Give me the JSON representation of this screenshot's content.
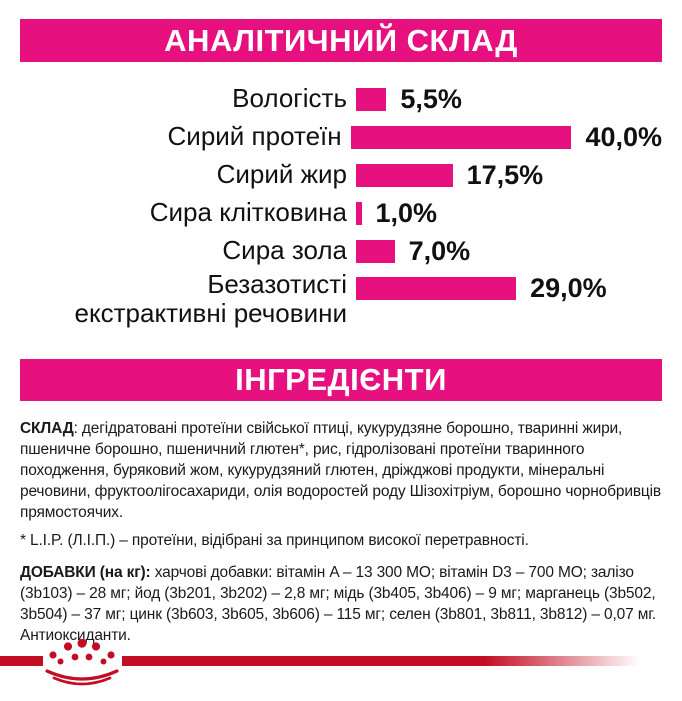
{
  "colors": {
    "accent_pink": "#E6117F",
    "brand_red": "#C30D23",
    "text": "#1a1a1a"
  },
  "section_analytical": {
    "title": "АНАЛІТИЧНИЙ СКЛАД"
  },
  "chart_data": {
    "type": "bar",
    "orientation": "horizontal",
    "categories": [
      "Вологість",
      "Сирий протеїн",
      "Сирий жир",
      "Сира клітковина",
      "Сира зола",
      "Безазотисті\nекстрактивні речовини"
    ],
    "values": [
      5.5,
      40.0,
      17.5,
      1.0,
      7.0,
      29.0
    ],
    "value_labels": [
      "5,5%",
      "40,0%",
      "17,5%",
      "1,0%",
      "7,0%",
      "29,0%"
    ],
    "title": "АНАЛІТИЧНИЙ СКЛАД",
    "xlabel": "",
    "ylabel": "",
    "xlim": [
      0,
      40
    ],
    "bar_color": "#E6117F",
    "grid": false,
    "legend": false
  },
  "section_ingredients": {
    "title": "ІНГРЕДІЄНТИ"
  },
  "composition": {
    "label": "СКЛАД",
    "text": ": дегідратовані протеїни свійської птиці, кукурудзяне борошно, тваринні жири, пшеничне борошно, пшеничний глютен*, рис, гідролізовані протеїни тваринного походження, буряковий жом, кукурудзяний глютен, дріжджові продукти, мінеральні речовини, фруктоолігосахариди, олія водоростей роду Шізохітріум, борошно чорнобривців прямостоячих."
  },
  "footnote": "* L.I.P. (Л.І.П.) – протеїни, відібрані за принципом високої перетравності.",
  "additives": {
    "label": "ДОБАВКИ (на кг):",
    "text": " харчові добавки: вітамін A – 13 300 МО; вітамін D3 – 700 МО; залізо (3b103) – 28 мг; йод (3b201, 3b202) – 2,8 мг; мідь (3b405, 3b406) – 9 мг; марганець (3b502, 3b504) – 37 мг; цинк (3b603, 3b605, 3b606) – 115 мг; селен (3b801, 3b811, 3b812) – 0,07 мг. Антиоксиданти."
  },
  "footer": {
    "logo": "royal-canin-crown"
  }
}
